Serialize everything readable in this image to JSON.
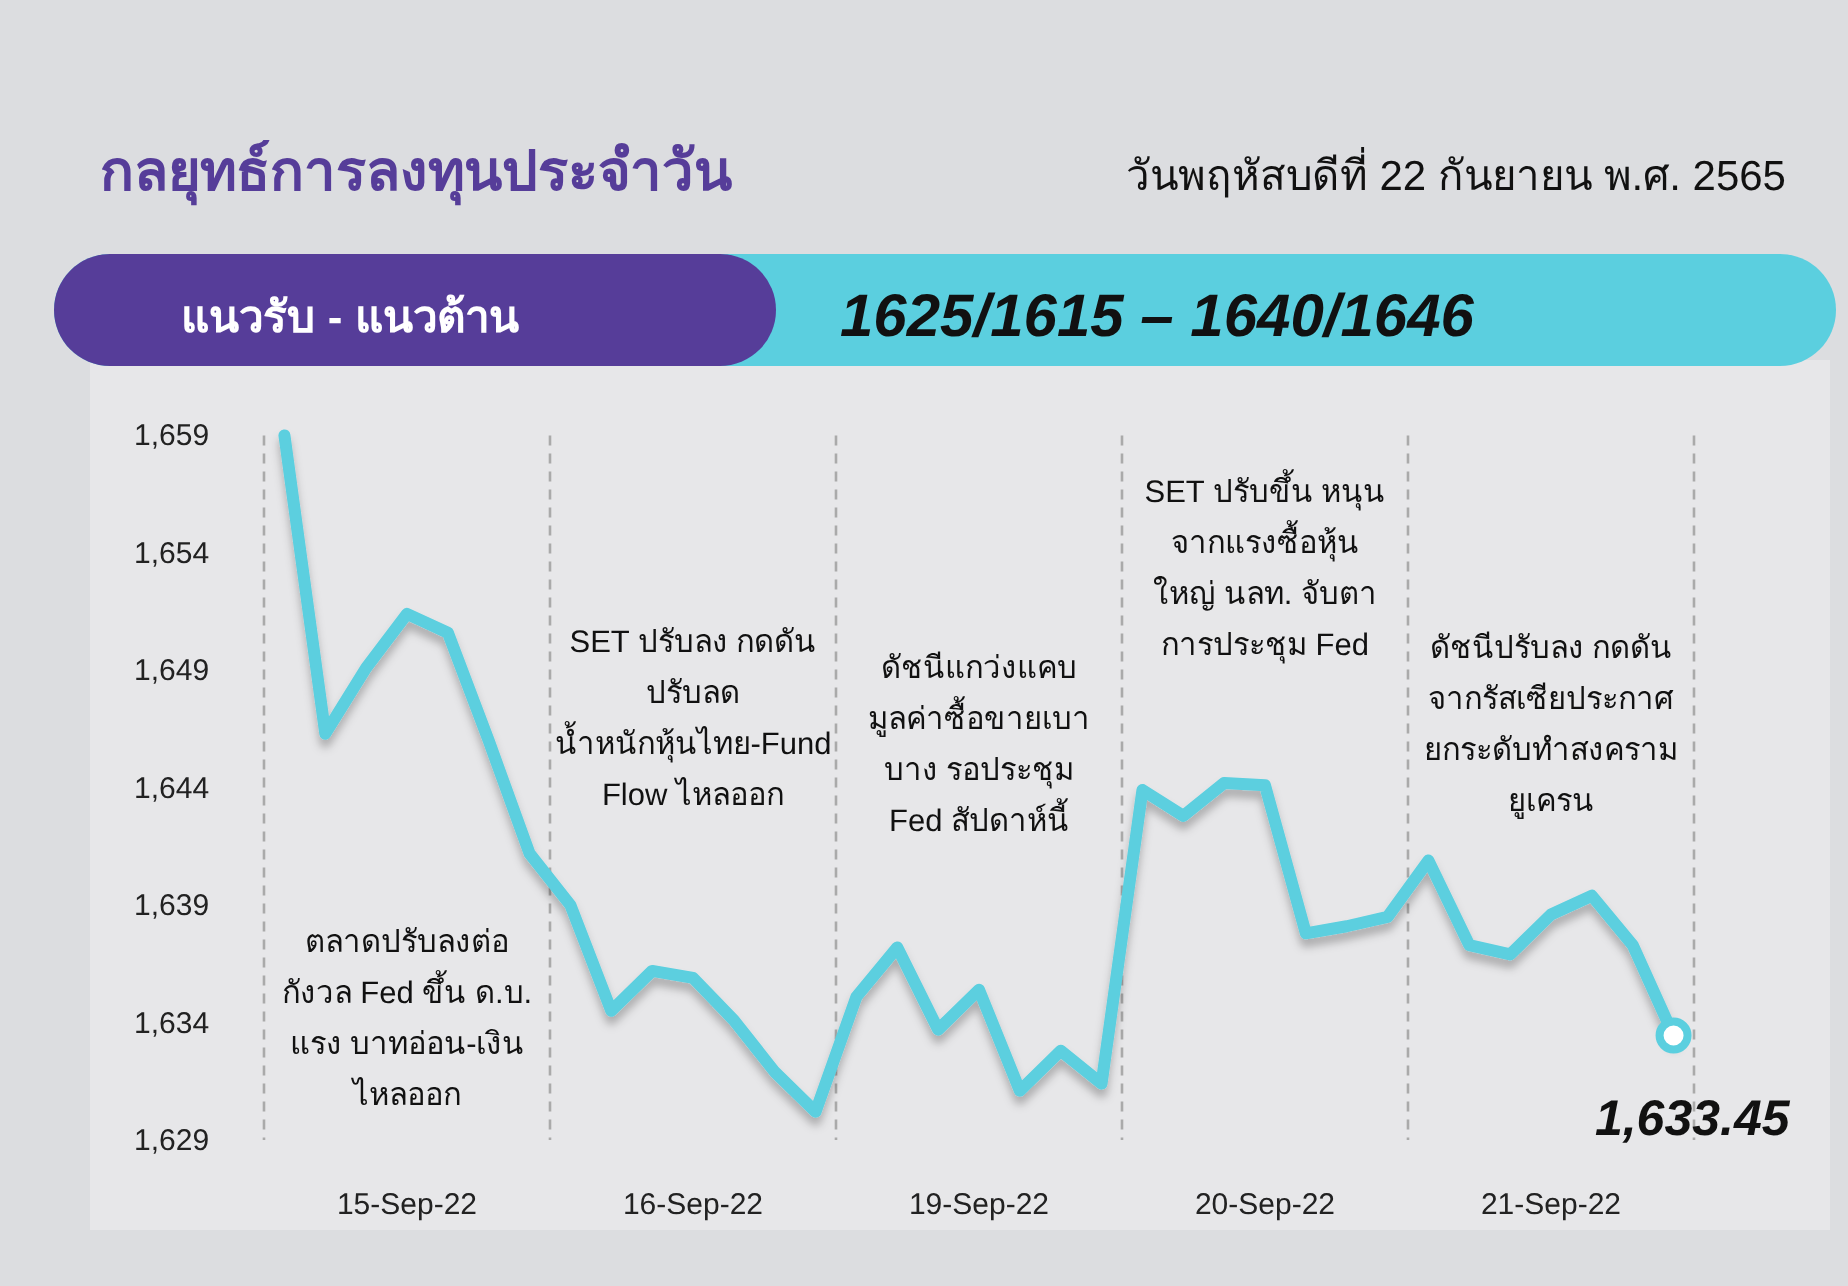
{
  "chart_data": {
    "type": "line",
    "title": "กลยุทธ์การลงทุนประจำวัน",
    "subtitle": "วันพฤหัสบดีที่ 22 กันยายน พ.ศ. 2565",
    "categories": [
      null,
      null,
      null,
      "15-Sep-22",
      null,
      null,
      null,
      null,
      null,
      null,
      "16-Sep-22",
      null,
      null,
      null,
      null,
      null,
      null,
      "19-Sep-22",
      null,
      null,
      null,
      null,
      null,
      null,
      "20-Sep-22",
      null,
      null,
      null,
      null,
      null,
      null,
      "21-Sep-22",
      null,
      null,
      null
    ],
    "ylim": [
      1629,
      1659
    ],
    "yticks": [
      {
        "value": 1629,
        "label": "1,629"
      },
      {
        "value": 1634,
        "label": "1,634"
      },
      {
        "value": 1639,
        "label": "1,639"
      },
      {
        "value": 1644,
        "label": "1,644"
      },
      {
        "value": 1649,
        "label": "1,649"
      },
      {
        "value": 1654,
        "label": "1,654"
      },
      {
        "value": 1659,
        "label": "1,659"
      }
    ],
    "grid": false,
    "series": [
      {
        "type": "line",
        "color": "#5bcfdf",
        "marker": "none",
        "line_style": "solid",
        "values": [
          1659,
          1646.3,
          1649.1,
          1651.4,
          1650.6,
          1646.0,
          1641.2,
          1639,
          1634.5,
          1636.2,
          1635.9,
          1634.1,
          1631.9,
          1630.2,
          1635.1,
          1637.2,
          1633.7,
          1635.4,
          1631.1,
          1632.8,
          1631.4,
          1643.9,
          1642.8,
          1644.2,
          1644.1,
          1637.8,
          1638.1,
          1638.5,
          1640.9,
          1637.3,
          1636.9,
          1638.6,
          1639.4,
          1637.3,
          1633.45
        ]
      },
      {
        "type": "scatter",
        "color": "#5bcfdf",
        "marker": "circle",
        "values": [
          null,
          null,
          null,
          null,
          null,
          null,
          null,
          null,
          null,
          null,
          null,
          null,
          null,
          null,
          null,
          null,
          null,
          null,
          null,
          null,
          null,
          null,
          null,
          null,
          null,
          null,
          null,
          null,
          null,
          null,
          null,
          null,
          null,
          null,
          1633.45
        ]
      }
    ],
    "annotations": [
      "แนวรับ - แนวต้าน",
      "1625/1615 –  1640/1646",
      "ตลาดปรับลงต่อ\nกังวล Fed ขึ้น ด.บ.\nแรง บาทอ่อน-เงิน\nไหลออก",
      "SET ปรับลง กดดัน\nปรับลด\nน้ำหนักหุ้นไทย-Fund\nFlow ไหลออก",
      "ดัชนีแกว่งแคบ\nมูลค่าซื้อขายเบา\nบาง รอประชุม\nFed สัปดาห์นี้",
      "SET ปรับขึ้น หนุน\nจากแรงซื้อหุ้น\nใหญ่ นลท. จับตา\nการประชุม Fed",
      "ดัชนีปรับลง กดดัน\nจากรัสเซียประกาศ\nยกระดับทำสงคราม\nยูเครน",
      {
        "text": "1,633.45",
        "y": 1633.45
      }
    ]
  }
}
